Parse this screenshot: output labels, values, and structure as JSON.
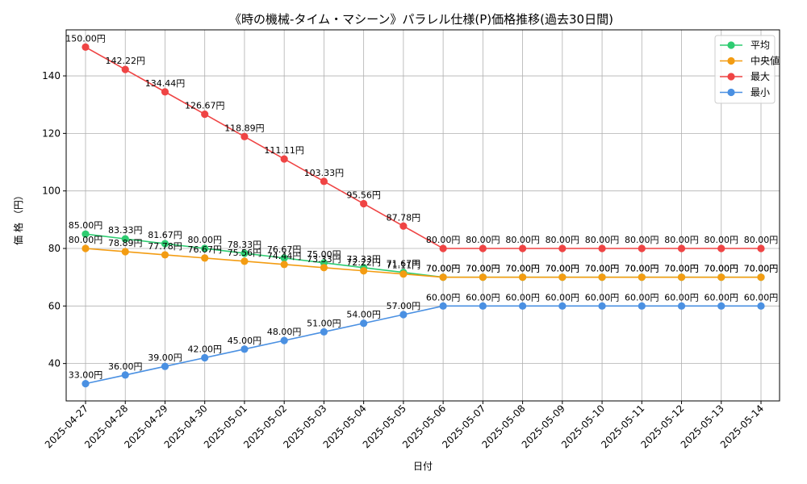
{
  "colors": {
    "avg": "#2ecc71",
    "median": "#f39c12",
    "max": "#ef4444",
    "min": "#4a90e2"
  },
  "chart_data": {
    "type": "line",
    "title": "《時の機械-タイム・マシーン》パラレル仕様(P)価格推移(過去30日間)",
    "xlabel": "日付",
    "ylabel": "価 格 （円）",
    "ylim": [
      27,
      156
    ],
    "yticks": [
      40,
      60,
      80,
      100,
      120,
      140
    ],
    "grid": true,
    "legend_position": "top-right",
    "categories": [
      "2025-04-27",
      "2025-04-28",
      "2025-04-29",
      "2025-04-30",
      "2025-05-01",
      "2025-05-02",
      "2025-05-03",
      "2025-05-04",
      "2025-05-05",
      "2025-05-06",
      "2025-05-07",
      "2025-05-08",
      "2025-05-09",
      "2025-05-10",
      "2025-05-11",
      "2025-05-12",
      "2025-05-13",
      "2025-05-14"
    ],
    "series": [
      {
        "key": "avg",
        "name": "平均",
        "color": "#2ecc71",
        "values": [
          85.0,
          83.33,
          81.67,
          80.0,
          78.33,
          76.67,
          75.0,
          73.33,
          71.67,
          70.0,
          70.0,
          70.0,
          70.0,
          70.0,
          70.0,
          70.0,
          70.0,
          70.0
        ],
        "labels": [
          "85.00円",
          "83.33円",
          "81.67円",
          "80.00円",
          "78.33円",
          "76.67円",
          "75.00円",
          "73.33円",
          "71.67円",
          "70.00円",
          "70.00円",
          "70.00円",
          "70.00円",
          "70.00円",
          "70.00円",
          "70.00円",
          "70.00円",
          "70.00円"
        ]
      },
      {
        "key": "median",
        "name": "中央値",
        "color": "#f39c12",
        "values": [
          80.0,
          78.89,
          77.78,
          76.67,
          75.56,
          74.44,
          73.33,
          72.22,
          71.11,
          70.0,
          70.0,
          70.0,
          70.0,
          70.0,
          70.0,
          70.0,
          70.0,
          70.0
        ],
        "labels": [
          "80.00円",
          "78.89円",
          "77.78円",
          "76.67円",
          "75.56円",
          "74.44円",
          "73.33円",
          "72.22円",
          "71.11円",
          "70.00円",
          "70.00円",
          "70.00円",
          "70.00円",
          "70.00円",
          "70.00円",
          "70.00円",
          "70.00円",
          "70.00円"
        ]
      },
      {
        "key": "max",
        "name": "最大",
        "color": "#ef4444",
        "values": [
          150.0,
          142.22,
          134.44,
          126.67,
          118.89,
          111.11,
          103.33,
          95.56,
          87.78,
          80.0,
          80.0,
          80.0,
          80.0,
          80.0,
          80.0,
          80.0,
          80.0,
          80.0
        ],
        "labels": [
          "150.00円",
          "142.22円",
          "134.44円",
          "126.67円",
          "118.89円",
          "111.11円",
          "103.33円",
          "95.56円",
          "87.78円",
          "80.00円",
          "80.00円",
          "80.00円",
          "80.00円",
          "80.00円",
          "80.00円",
          "80.00円",
          "80.00円",
          "80.00円"
        ]
      },
      {
        "key": "min",
        "name": "最小",
        "color": "#4a90e2",
        "values": [
          33.0,
          36.0,
          39.0,
          42.0,
          45.0,
          48.0,
          51.0,
          54.0,
          57.0,
          60.0,
          60.0,
          60.0,
          60.0,
          60.0,
          60.0,
          60.0,
          60.0,
          60.0
        ],
        "labels": [
          "33.00円",
          "36.00円",
          "39.00円",
          "42.00円",
          "45.00円",
          "48.00円",
          "51.00円",
          "54.00円",
          "57.00円",
          "60.00円",
          "60.00円",
          "60.00円",
          "60.00円",
          "60.00円",
          "60.00円",
          "60.00円",
          "60.00円",
          "60.00円"
        ]
      }
    ]
  }
}
